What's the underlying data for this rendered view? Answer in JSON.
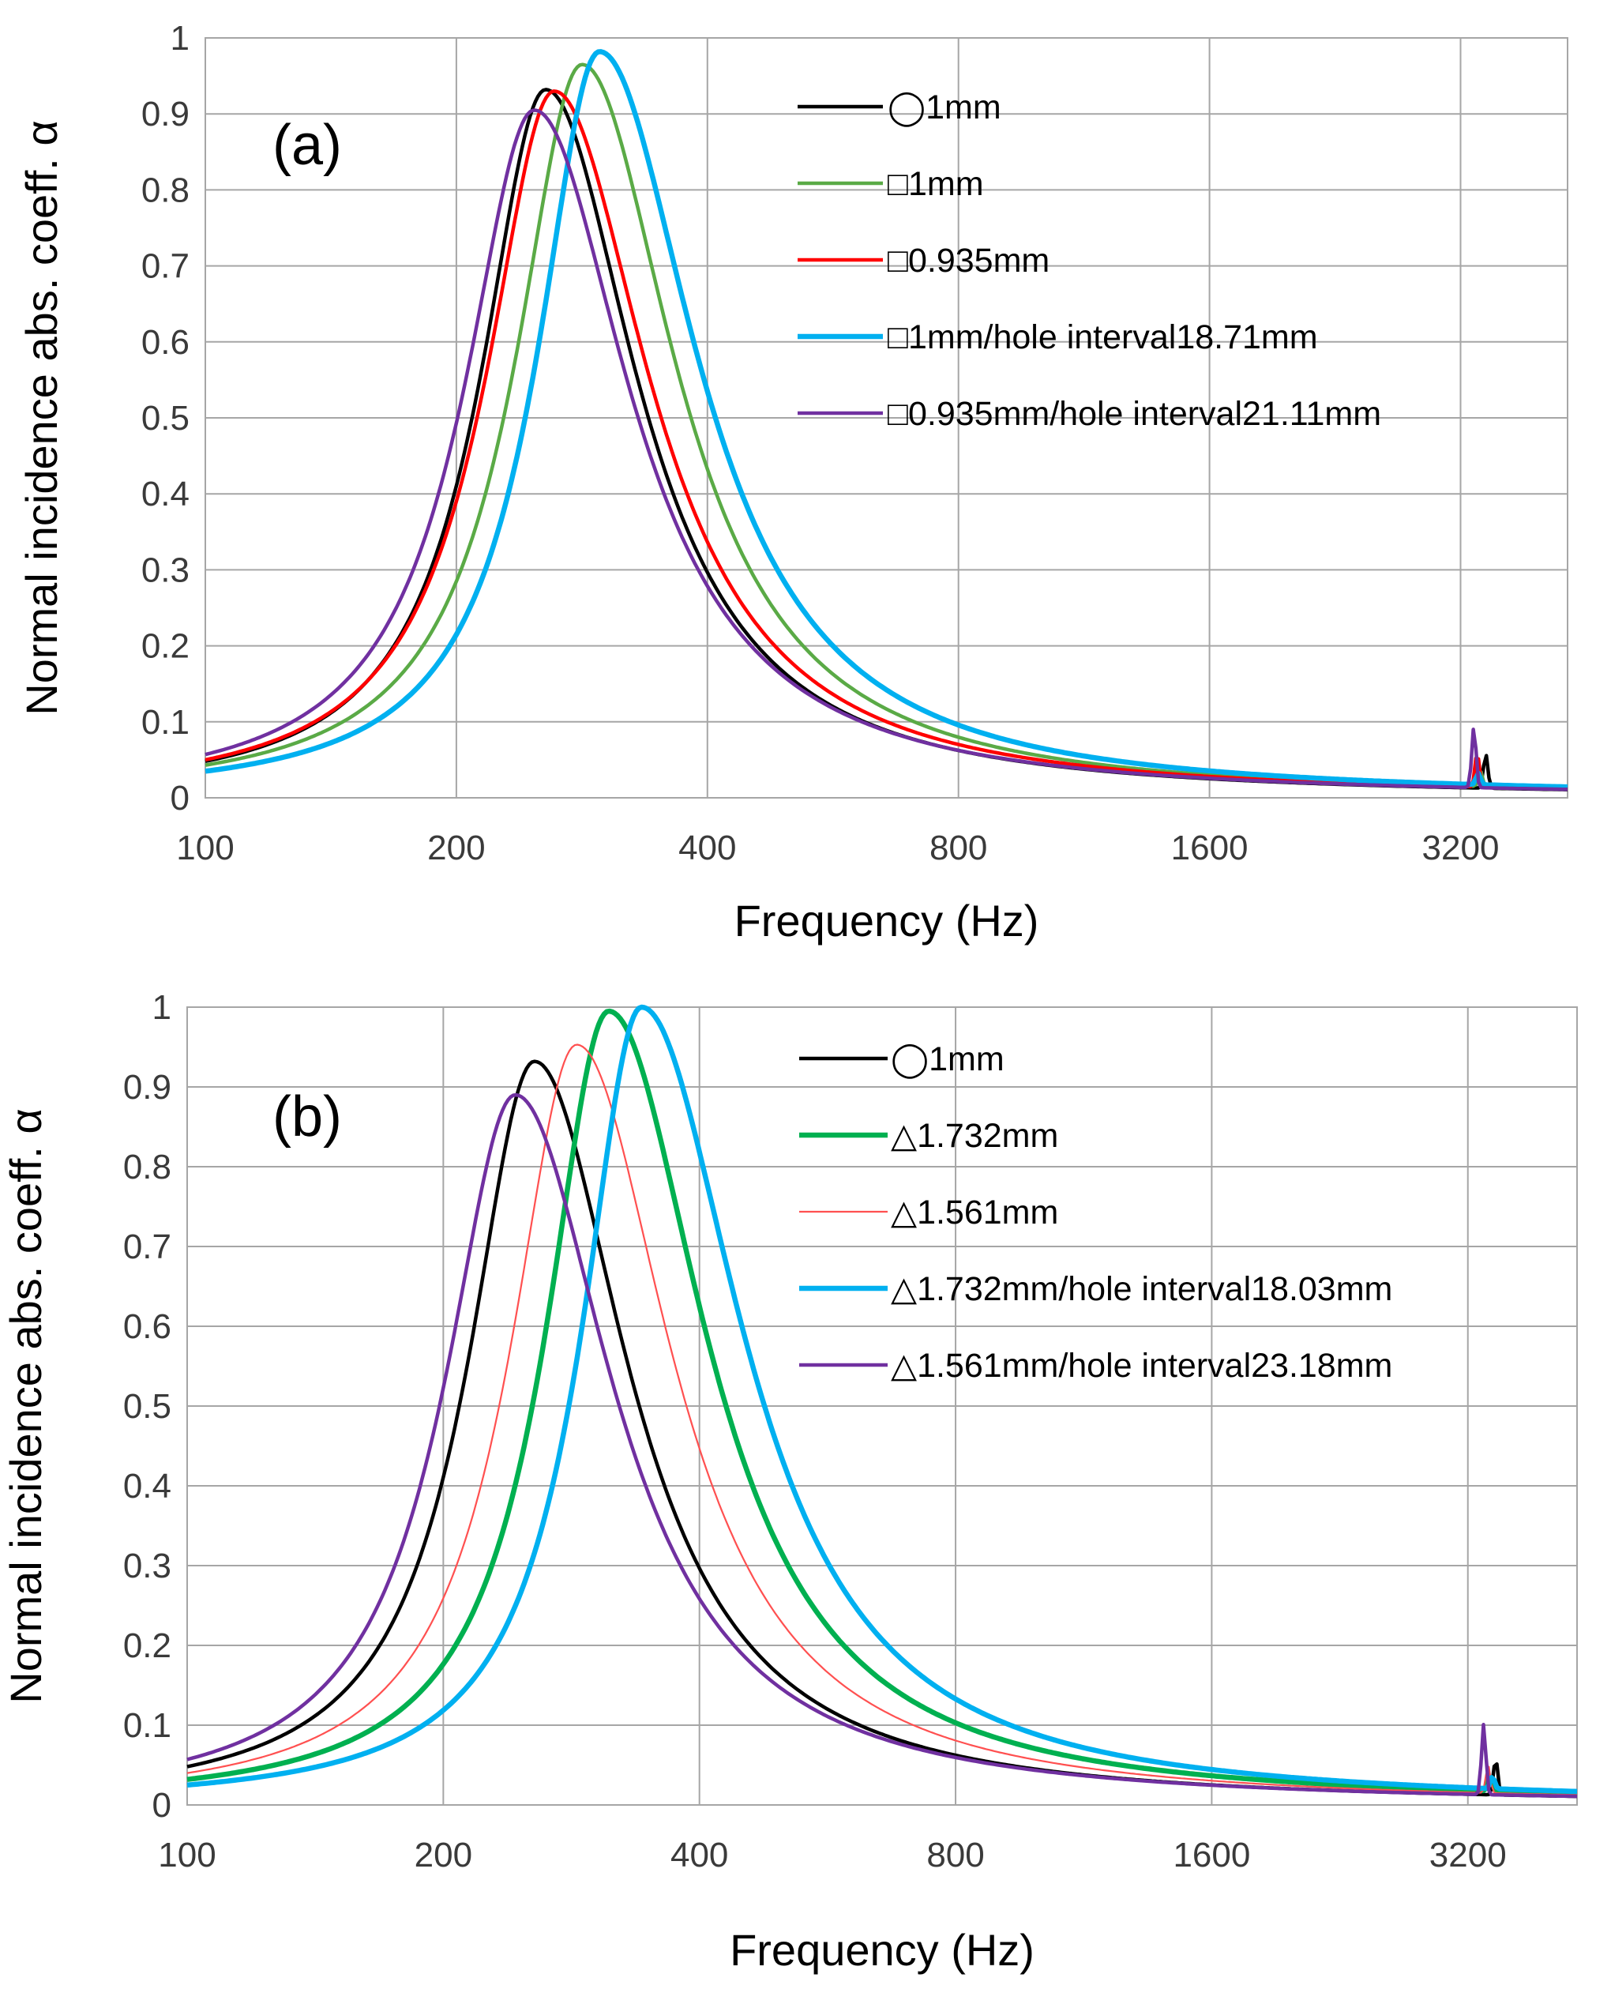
{
  "figure_title": "",
  "chart_data": [
    {
      "type": "line",
      "panel_label": "(a)",
      "xlabel": "Frequency (Hz)",
      "ylabel": "Normal incidence abs. coeff. α",
      "xscale": "log2",
      "xlim": [
        100,
        4300
      ],
      "ylim": [
        0,
        1
      ],
      "xticks": [
        100,
        200,
        400,
        800,
        1600,
        3200
      ],
      "xtick_labels": [
        "100",
        "200",
        "400",
        "800",
        "1600",
        "3200"
      ],
      "yticks": [
        0,
        0.1,
        0.2,
        0.3,
        0.4,
        0.5,
        0.6,
        0.7,
        0.8,
        0.9,
        1
      ],
      "ytick_labels": [
        "0",
        "0.1",
        "0.2",
        "0.3",
        "0.4",
        "0.5",
        "0.6",
        "0.7",
        "0.8",
        "0.9",
        "1"
      ],
      "grid": true,
      "legend_position": "top-right",
      "series": [
        {
          "name": "◯1mm",
          "color": "#000000",
          "stroke": "medium",
          "peak_freq": 256,
          "peak_value": 0.932,
          "low_end_value": 0.048,
          "width": 0.44,
          "spike_freq": 3430,
          "spike_value": 0.045
        },
        {
          "name": "□1mm",
          "color": "#5aaa46",
          "stroke": "medium",
          "peak_freq": 283,
          "peak_value": 0.965,
          "low_end_value": 0.043,
          "width": 0.45,
          "spike_freq": 3380,
          "spike_value": 0.02
        },
        {
          "name": "□0.935mm",
          "color": "#ff0000",
          "stroke": "medium",
          "peak_freq": 262,
          "peak_value": 0.93,
          "low_end_value": 0.05,
          "width": 0.46,
          "spike_freq": 3350,
          "spike_value": 0.045
        },
        {
          "name": "□1mm/hole interval18.71mm",
          "color": "#00b0f0",
          "stroke": "thick",
          "peak_freq": 297,
          "peak_value": 0.982,
          "low_end_value": 0.035,
          "width": 0.47,
          "spike_freq": 3360,
          "spike_value": 0.015
        },
        {
          "name": "□0.935mm/hole interval21.11mm",
          "color": "#7030a0",
          "stroke": "medium",
          "peak_freq": 248,
          "peak_value": 0.905,
          "low_end_value": 0.057,
          "width": 0.46,
          "spike_freq": 3320,
          "spike_value": 0.08
        }
      ]
    },
    {
      "type": "line",
      "panel_label": "(b)",
      "xlabel": "Frequency (Hz)",
      "ylabel": "Normal incidence abs. coeff. α",
      "xscale": "log2",
      "xlim": [
        100,
        4300
      ],
      "ylim": [
        0,
        1
      ],
      "xticks": [
        100,
        200,
        400,
        800,
        1600,
        3200
      ],
      "xtick_labels": [
        "100",
        "200",
        "400",
        "800",
        "1600",
        "3200"
      ],
      "yticks": [
        0,
        0.1,
        0.2,
        0.3,
        0.4,
        0.5,
        0.6,
        0.7,
        0.8,
        0.9,
        1
      ],
      "ytick_labels": [
        "0",
        "0.1",
        "0.2",
        "0.3",
        "0.4",
        "0.5",
        "0.6",
        "0.7",
        "0.8",
        "0.9",
        "1"
      ],
      "grid": true,
      "legend_position": "top-right",
      "series": [
        {
          "name": "◯1mm",
          "color": "#000000",
          "stroke": "medium",
          "peak_freq": 256,
          "peak_value": 0.932,
          "low_end_value": 0.048,
          "width": 0.44,
          "spike_freq": 3450,
          "spike_value": 0.045
        },
        {
          "name": "△1.732mm",
          "color": "#00b050",
          "stroke": "thick",
          "peak_freq": 313,
          "peak_value": 0.995,
          "low_end_value": 0.032,
          "width": 0.46,
          "spike_freq": 3400,
          "spike_value": 0.02
        },
        {
          "name": "△1.561mm",
          "color": "#ff5050",
          "stroke": "thin",
          "peak_freq": 287,
          "peak_value": 0.953,
          "low_end_value": 0.04,
          "width": 0.45,
          "spike_freq": 3380,
          "spike_value": 0.035
        },
        {
          "name": "△1.732mm/hole interval18.03mm",
          "color": "#00b0f0",
          "stroke": "thick",
          "peak_freq": 342,
          "peak_value": 1.0,
          "low_end_value": 0.025,
          "width": 0.48,
          "spike_freq": 3420,
          "spike_value": 0.015
        },
        {
          "name": "△1.561mm/hole interval23.18mm",
          "color": "#7030a0",
          "stroke": "medium",
          "peak_freq": 243,
          "peak_value": 0.89,
          "low_end_value": 0.057,
          "width": 0.46,
          "spike_freq": 3340,
          "spike_value": 0.088
        }
      ]
    }
  ]
}
